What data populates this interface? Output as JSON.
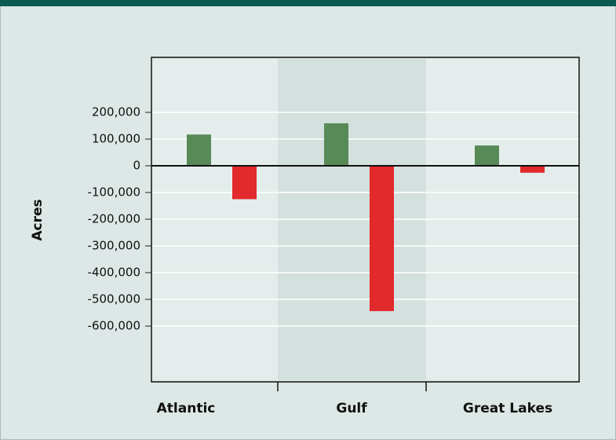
{
  "chart_data": {
    "type": "bar",
    "categories": [
      "Atlantic",
      "Gulf",
      "Great Lakes"
    ],
    "series": [
      {
        "color": "#578a57",
        "values": [
          117000,
          159000,
          76000
        ]
      },
      {
        "color": "#e2292c",
        "values": [
          -125000,
          -544000,
          -26000
        ]
      }
    ],
    "y_label": "Acres",
    "ylim": [
      -800000,
      400000
    ],
    "yticks": [
      {
        "value": 200000,
        "label": "200,000"
      },
      {
        "value": 100000,
        "label": "100,000"
      },
      0,
      {
        "value": -100000,
        "label": "-100,000"
      },
      {
        "value": -200000,
        "label": "-200,000"
      },
      {
        "value": -300000,
        "label": "-300,000"
      },
      {
        "value": -400000,
        "label": "-400,000"
      },
      {
        "value": -500000,
        "label": "-500,000"
      },
      {
        "value": -600000,
        "label": "-600,000"
      }
    ],
    "grid": true
  }
}
